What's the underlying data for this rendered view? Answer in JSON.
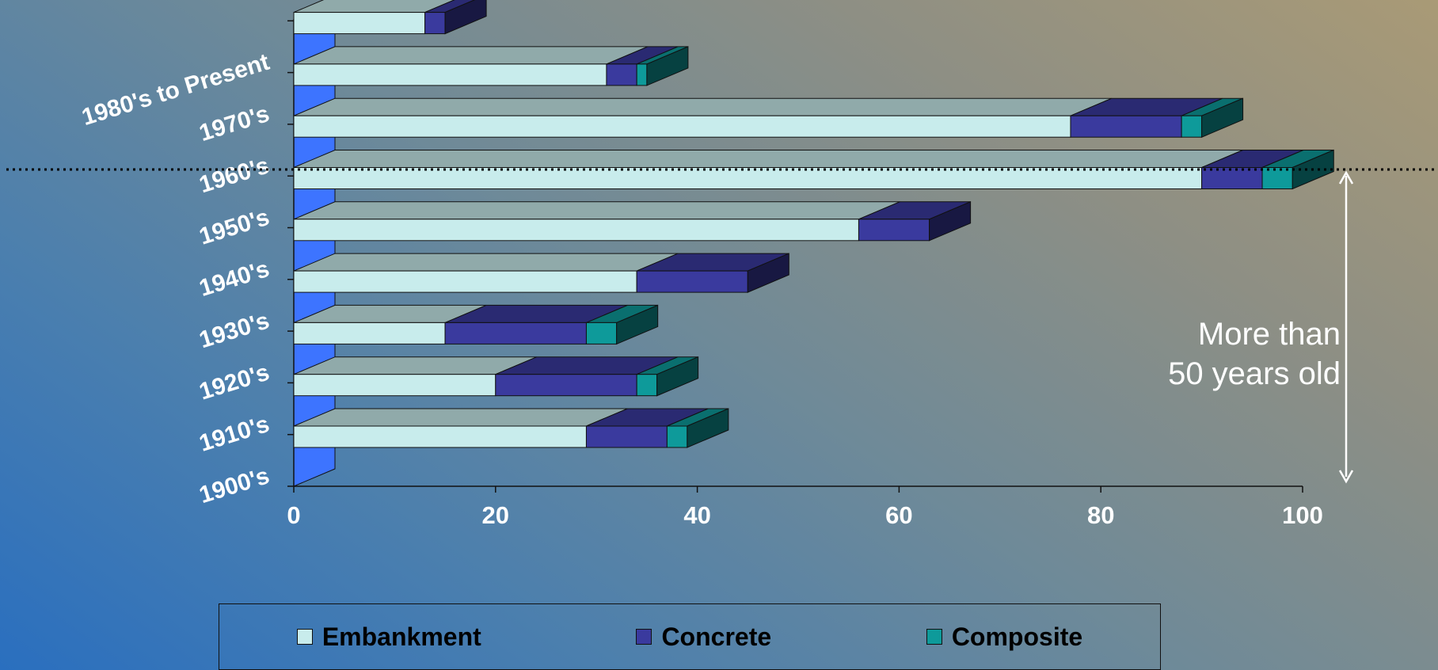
{
  "chart_data": {
    "type": "bar",
    "orientation": "horizontal",
    "stacked": true,
    "categories": [
      "1900's",
      "1910's",
      "1920's",
      "1930's",
      "1940's",
      "1950's",
      "1960's",
      "1970's",
      "1980's to Present"
    ],
    "series": [
      {
        "name": "Embankment",
        "values": [
          29,
          20,
          15,
          34,
          56,
          90,
          77,
          31,
          13
        ],
        "color": "#c8ecec"
      },
      {
        "name": "Concrete",
        "values": [
          8,
          14,
          14,
          11,
          7,
          6,
          11,
          3,
          2
        ],
        "color": "#3a3a9e"
      },
      {
        "name": "Composite",
        "values": [
          2,
          2,
          3,
          0,
          0,
          3,
          2,
          1,
          0
        ],
        "color": "#0e9a9a"
      }
    ],
    "xlim": [
      0,
      100
    ],
    "xticks": [
      "0",
      "20",
      "40",
      "60",
      "80",
      "100"
    ],
    "grid": false,
    "legend_position": "bottom",
    "annotation": [
      "More than",
      "50 years old"
    ]
  }
}
